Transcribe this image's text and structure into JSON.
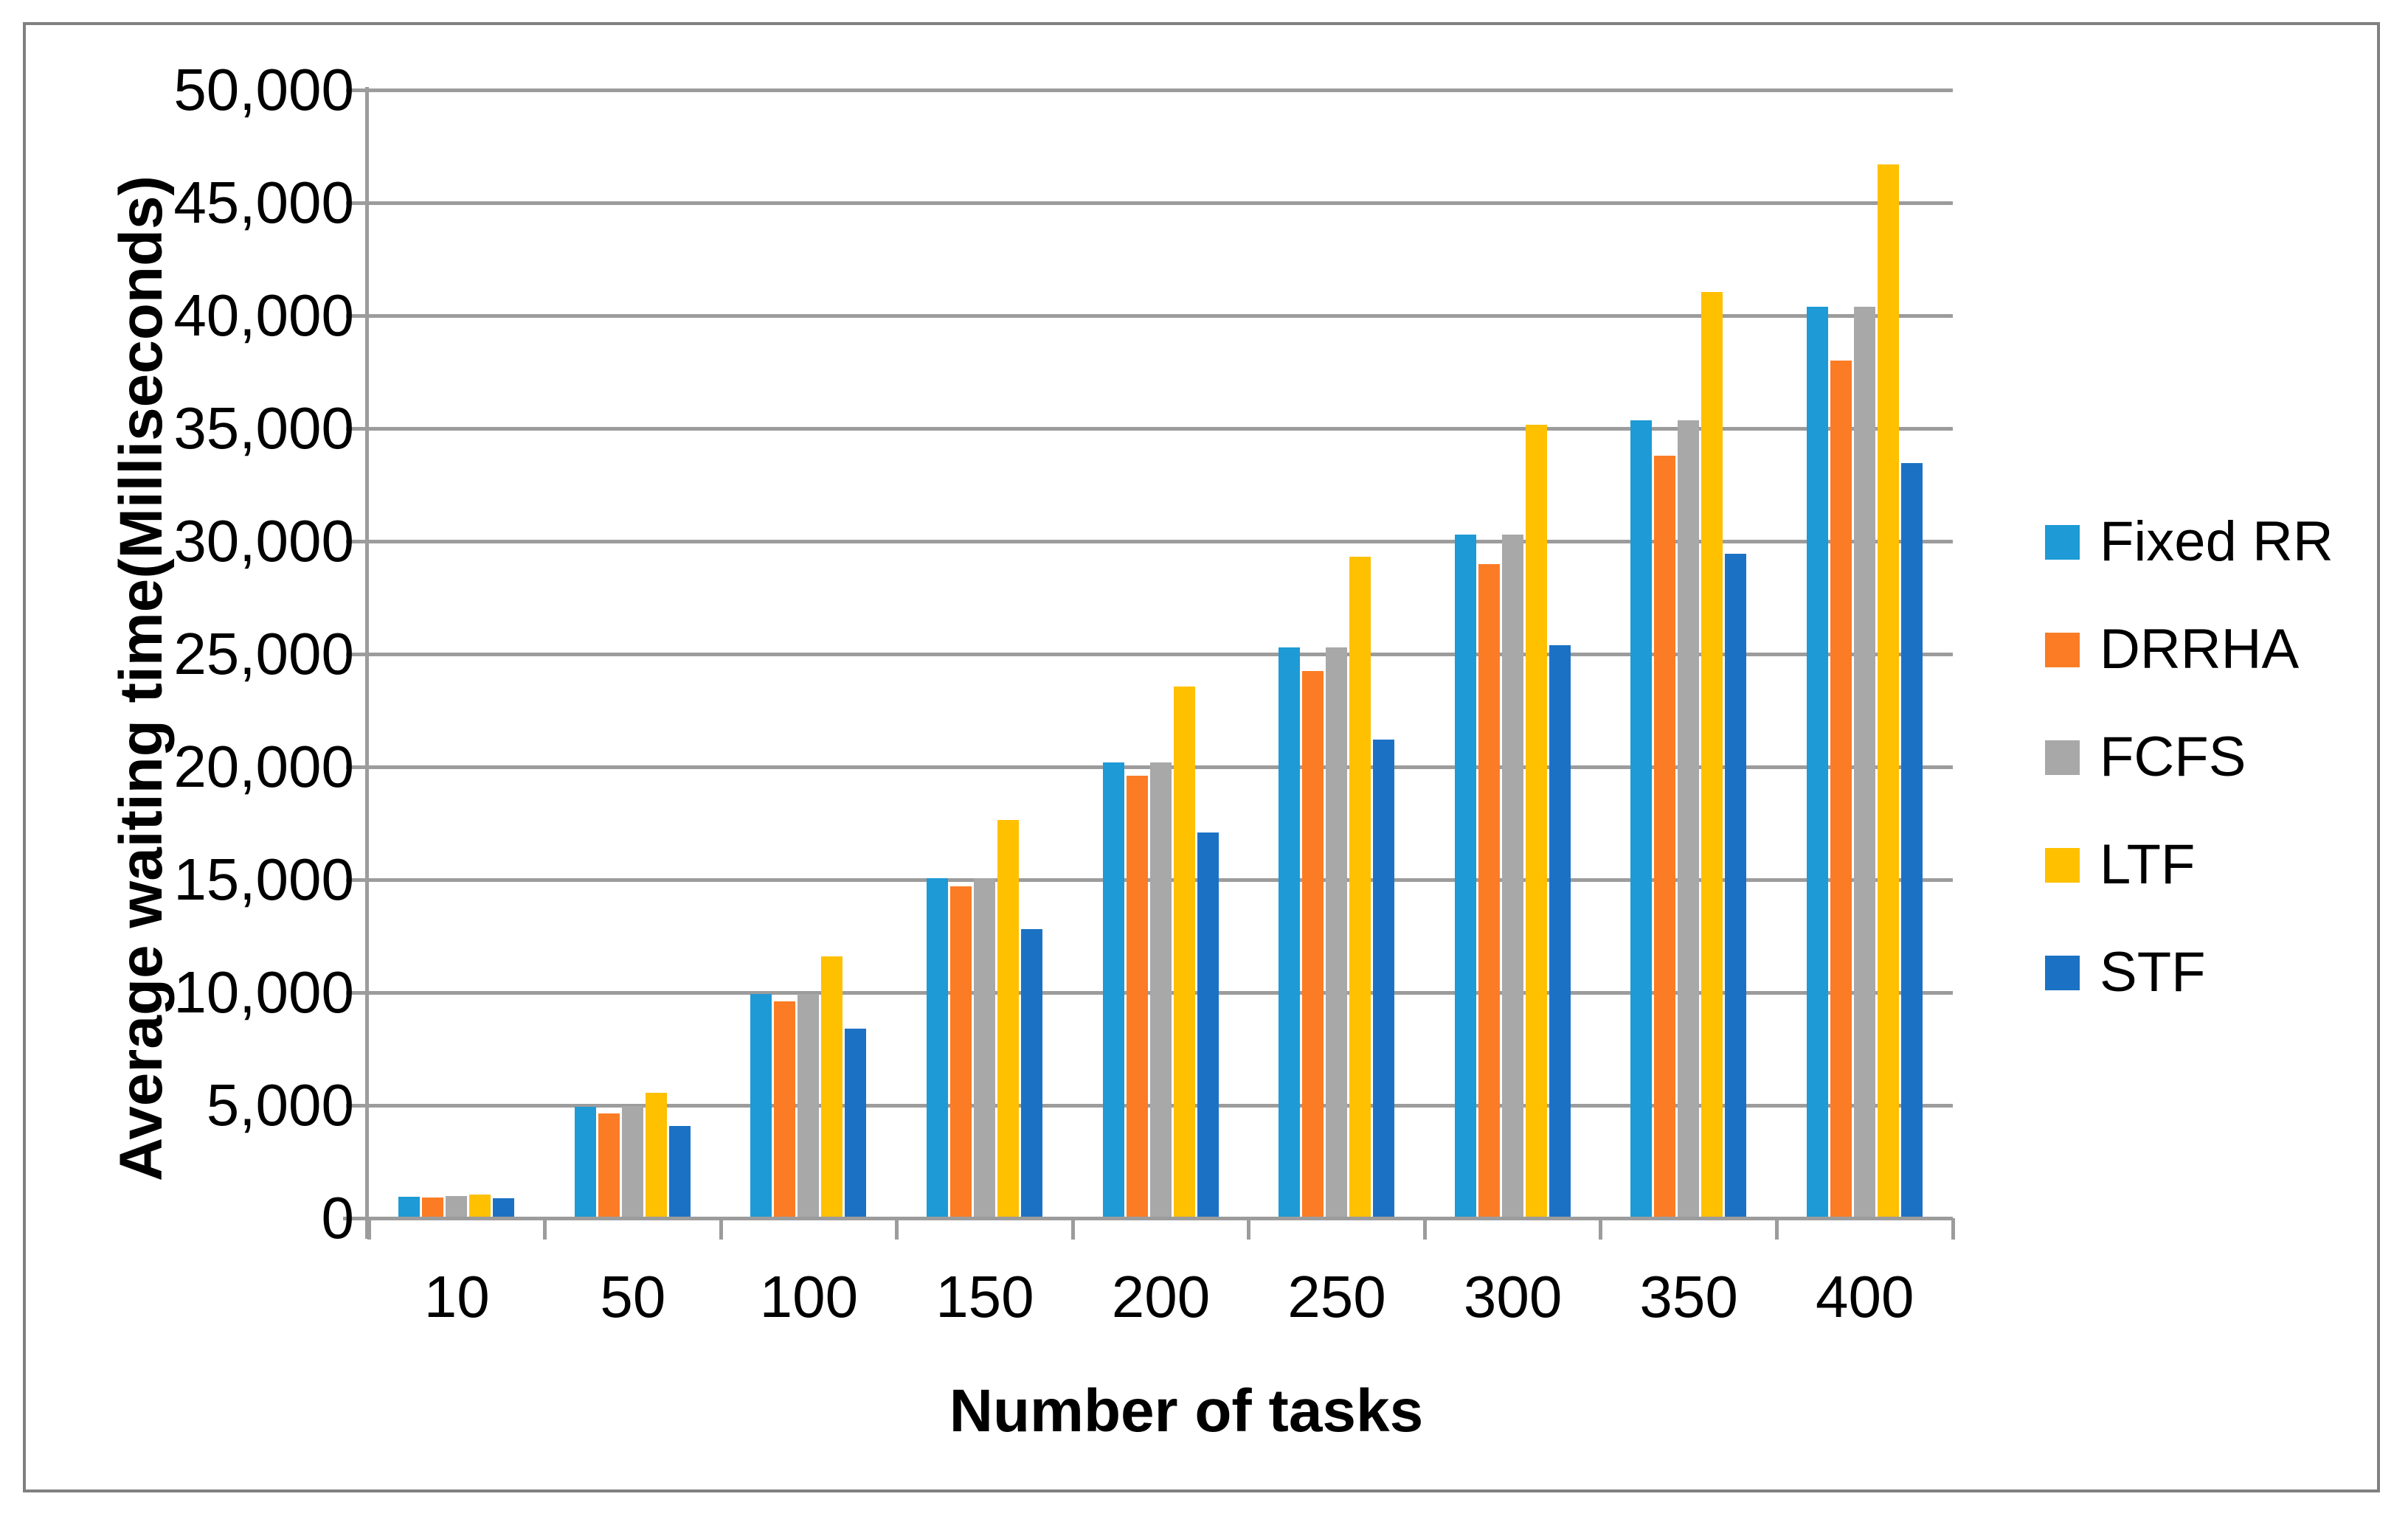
{
  "chart_data": {
    "type": "bar",
    "title": "",
    "xlabel": "Number of tasks",
    "ylabel": "Average waiting time(Milliseconds)",
    "categories": [
      "10",
      "50",
      "100",
      "150",
      "200",
      "250",
      "300",
      "350",
      "400"
    ],
    "series": [
      {
        "name": "Fixed RR",
        "color": "#1E9AD6",
        "values": [
          950,
          4930,
          9950,
          15050,
          20200,
          25300,
          30300,
          35350,
          40400
        ]
      },
      {
        "name": "DRRHA",
        "color": "#FB7C25",
        "values": [
          900,
          4650,
          9600,
          14700,
          19600,
          24250,
          29000,
          33800,
          38000
        ]
      },
      {
        "name": "FCFS",
        "color": "#A8A8A8",
        "values": [
          980,
          4960,
          9950,
          15050,
          20200,
          25300,
          30300,
          35350,
          40400
        ]
      },
      {
        "name": "LTF",
        "color": "#FFC000",
        "values": [
          1040,
          5550,
          11600,
          17650,
          23550,
          29300,
          35150,
          41050,
          46700
        ]
      },
      {
        "name": "STF",
        "color": "#1B72C4",
        "values": [
          870,
          4100,
          8400,
          12800,
          17100,
          21200,
          25400,
          29450,
          33450
        ]
      }
    ],
    "ylim": [
      0,
      50000
    ],
    "ytick_step": 5000,
    "ytick_labels": [
      "0",
      "5,000",
      "10,000",
      "15,000",
      "20,000",
      "25,000",
      "30,000",
      "35,000",
      "40,000",
      "45,000",
      "50,000"
    ],
    "grid": true,
    "legend_position": "right"
  },
  "style_colors": {
    "gridline": "#9C9C9C",
    "axis": "#9C9C9C",
    "frame_border": "#808080",
    "text": "#000000",
    "background": "#FFFFFF"
  }
}
